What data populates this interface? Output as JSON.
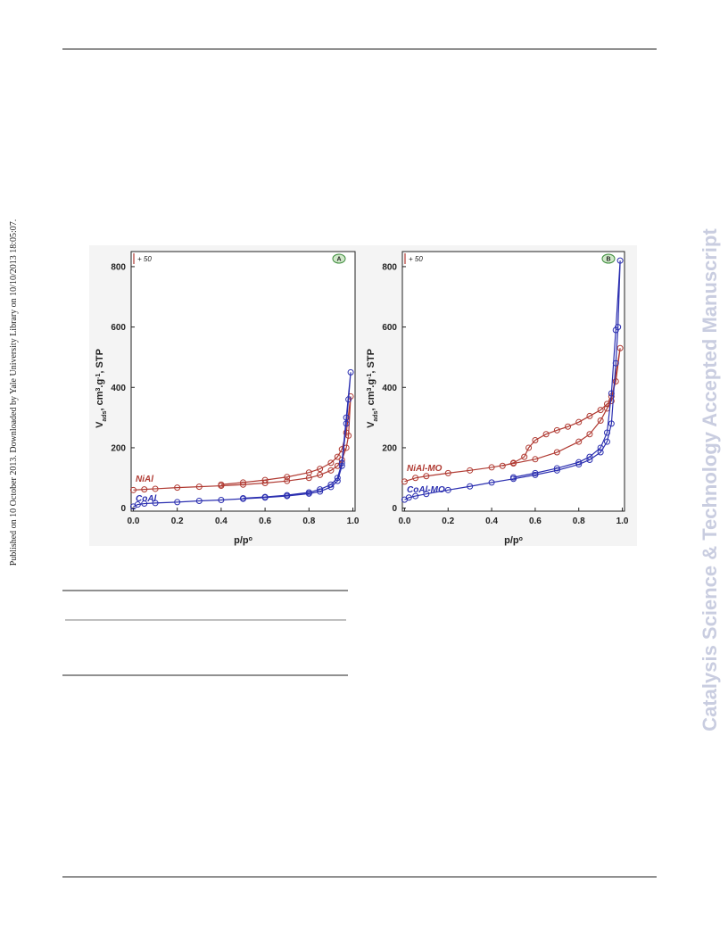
{
  "side_note": "Published on 10 October 2013. Downloaded by Yale University Library on 10/10/2013 18:05:07.",
  "watermark": "Catalysis Science & Technology Accepted Manuscript",
  "chart_data": [
    {
      "type": "line",
      "panel": "A",
      "offset_note": "+ 50",
      "y_label": [
        "V",
        "ads",
        ", cm",
        "3",
        ".g",
        "-1",
        ", STP"
      ],
      "x_label": [
        "p/p",
        "o"
      ],
      "xlim": [
        -0.01,
        1.01
      ],
      "ylim": [
        -10,
        850
      ],
      "xticks": [
        {
          "value": 0,
          "label": "0.0"
        },
        0.2,
        0.4,
        0.6,
        0.8,
        {
          "value": 1,
          "label": "1.0"
        }
      ],
      "yticks": [
        0,
        200,
        400,
        600,
        800
      ],
      "series": [
        {
          "name": "NiAl",
          "color": "#b03a32",
          "x": [
            0,
            0.05,
            0.1,
            0.2,
            0.3,
            0.4,
            0.5,
            0.6,
            0.7,
            0.8,
            0.85,
            0.9,
            0.93,
            0.95,
            0.97,
            0.98,
            0.99,
            0.97,
            0.95,
            0.93,
            0.9,
            0.85,
            0.8,
            0.7,
            0.6,
            0.5,
            0.4
          ],
          "values": [
            60,
            62,
            64,
            68,
            71,
            74,
            78,
            83,
            90,
            100,
            110,
            125,
            140,
            160,
            200,
            240,
            370,
            250,
            195,
            170,
            150,
            130,
            118,
            103,
            93,
            85,
            78
          ]
        },
        {
          "name": "CoAl",
          "color": "#2b2fb0",
          "x": [
            0,
            0.02,
            0.05,
            0.1,
            0.2,
            0.3,
            0.4,
            0.5,
            0.6,
            0.7,
            0.8,
            0.85,
            0.9,
            0.93,
            0.95,
            0.97,
            0.98,
            0.99,
            0.97,
            0.95,
            0.93,
            0.9,
            0.85,
            0.8,
            0.7,
            0.6,
            0.5
          ],
          "values": [
            5,
            12,
            15,
            17,
            20,
            24,
            27,
            31,
            35,
            40,
            48,
            55,
            70,
            90,
            140,
            280,
            360,
            450,
            300,
            150,
            100,
            78,
            62,
            52,
            43,
            37,
            33
          ]
        }
      ]
    },
    {
      "type": "line",
      "panel": "B",
      "offset_note": "+ 50",
      "y_label": [
        "V",
        "ads",
        ", cm",
        "3",
        ".g",
        "-1",
        ", STP"
      ],
      "x_label": [
        "p/p",
        "o"
      ],
      "xlim": [
        -0.01,
        1.01
      ],
      "ylim": [
        -10,
        850
      ],
      "xticks": [
        {
          "value": 0,
          "label": "0.0"
        },
        0.2,
        0.4,
        0.6,
        0.8,
        {
          "value": 1,
          "label": "1.0"
        }
      ],
      "yticks": [
        0,
        200,
        400,
        600,
        800
      ],
      "series": [
        {
          "name": "NiAl-MO",
          "color": "#b03a32",
          "x": [
            0,
            0.05,
            0.1,
            0.2,
            0.3,
            0.4,
            0.5,
            0.6,
            0.7,
            0.8,
            0.85,
            0.9,
            0.93,
            0.95,
            0.97,
            0.99,
            0.95,
            0.93,
            0.9,
            0.85,
            0.8,
            0.75,
            0.7,
            0.65,
            0.6,
            0.57,
            0.55,
            0.5,
            0.45
          ],
          "values": [
            88,
            100,
            106,
            116,
            125,
            135,
            148,
            162,
            185,
            220,
            245,
            290,
            330,
            370,
            420,
            530,
            355,
            345,
            325,
            305,
            285,
            270,
            258,
            245,
            225,
            200,
            170,
            150,
            140
          ]
        },
        {
          "name": "CoAl-MO",
          "color": "#2b2fb0",
          "x": [
            0,
            0.02,
            0.05,
            0.1,
            0.2,
            0.3,
            0.4,
            0.5,
            0.6,
            0.7,
            0.8,
            0.85,
            0.9,
            0.93,
            0.95,
            0.97,
            0.98,
            0.99,
            0.97,
            0.95,
            0.93,
            0.9,
            0.85,
            0.8,
            0.7,
            0.6,
            0.5
          ],
          "values": [
            28,
            35,
            40,
            47,
            60,
            72,
            85,
            97,
            110,
            125,
            145,
            160,
            185,
            220,
            280,
            480,
            600,
            820,
            590,
            380,
            250,
            200,
            170,
            152,
            132,
            116,
            102
          ]
        }
      ]
    }
  ]
}
